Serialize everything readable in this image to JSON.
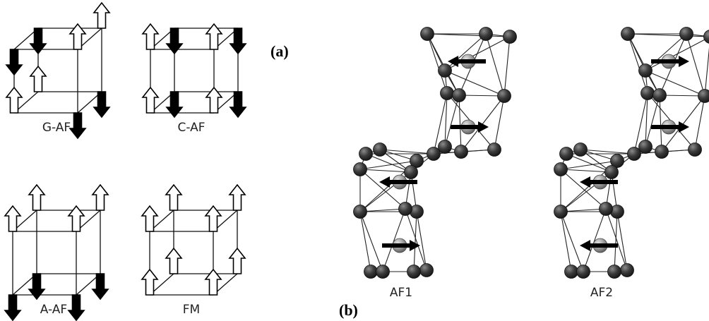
{
  "panel_a": {
    "label": "(a)",
    "cubes": [
      {
        "name": "G-AF",
        "spins": [
          "up",
          "down",
          "up",
          "down",
          "down",
          "up",
          "down",
          "up"
        ]
      },
      {
        "name": "C-AF",
        "spins": [
          "up",
          "up",
          "down",
          "down",
          "up",
          "up",
          "down",
          "down"
        ]
      },
      {
        "name": "A-AF",
        "spins": [
          "down",
          "down",
          "down",
          "down",
          "up",
          "up",
          "up",
          "up"
        ]
      },
      {
        "name": "FM",
        "spins": [
          "up",
          "up",
          "up",
          "up",
          "up",
          "up",
          "up",
          "up"
        ]
      }
    ]
  },
  "panel_b": {
    "label": "(b)",
    "chains": [
      {
        "name": "AF1",
        "moments": [
          "left",
          "right",
          "left",
          "right"
        ]
      },
      {
        "name": "AF2",
        "moments": [
          "right",
          "right",
          "left",
          "left"
        ]
      }
    ]
  },
  "colors": {
    "filled_arrow": "#000000",
    "open_arrow": "#ffffff",
    "atom_dark": "#3a3a3a",
    "atom_light": "#9a9a9a"
  }
}
